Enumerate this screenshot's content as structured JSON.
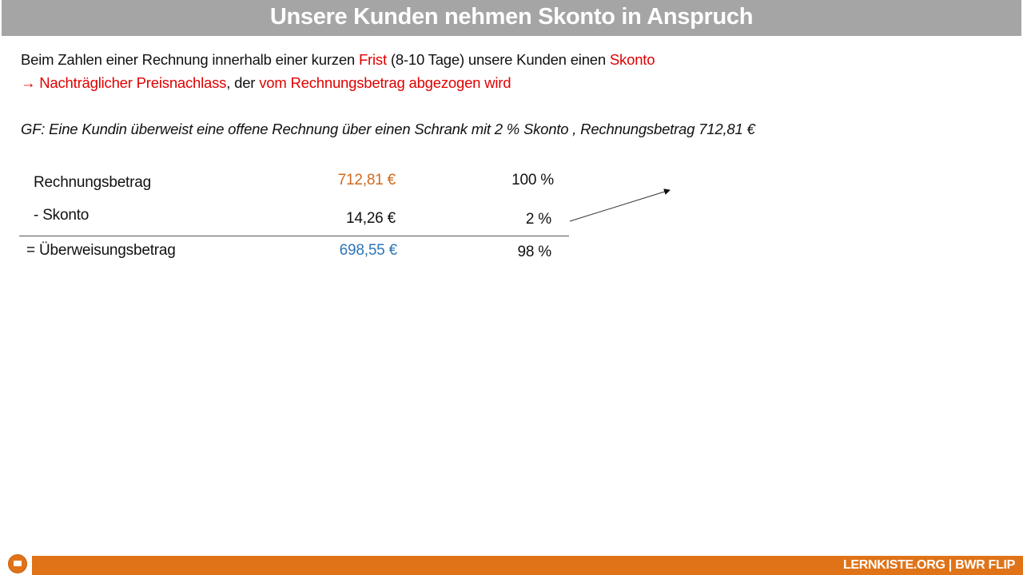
{
  "title": "Unsere Kunden nehmen Skonto in Anspruch",
  "intro": {
    "line1_a": "Beim Zahlen einer Rechnung innerhalb einer kurzen ",
    "line1_b": "Frist",
    "line1_c": " (8-10 Tage) unsere Kunden einen ",
    "line1_d": "Skonto",
    "line2_arrow": "→",
    "line2_a": " Nachträglicher Preisnachlass",
    "line2_b": ", der ",
    "line2_c": "vom Rechnungsbetrag abgezogen wird"
  },
  "task": "GF: Eine Kundin überweist eine offene Rechnung über einen Schrank mit 2 % Skonto , Rechnungsbetrag 712,81 €",
  "calculation": {
    "rows": [
      {
        "label": "Rechnungsbetrag",
        "amount": "712,81 €",
        "percent": "100 %"
      },
      {
        "label": "- Skonto",
        "amount": "14,26 €",
        "percent": "2 %"
      },
      {
        "label": "= Überweisungsbetrag",
        "amount": "698,55 €",
        "percent": "98 %"
      }
    ]
  },
  "colors": {
    "header": "#a5a5a5",
    "accent_red": "#e00000",
    "orange": "#d2691e",
    "blue": "#2e75b6",
    "footer": "#e07318"
  },
  "footer": {
    "text": "LERNKISTE.ORG | BWR FLIP",
    "logo_icon": "lernkiste-logo-icon"
  }
}
